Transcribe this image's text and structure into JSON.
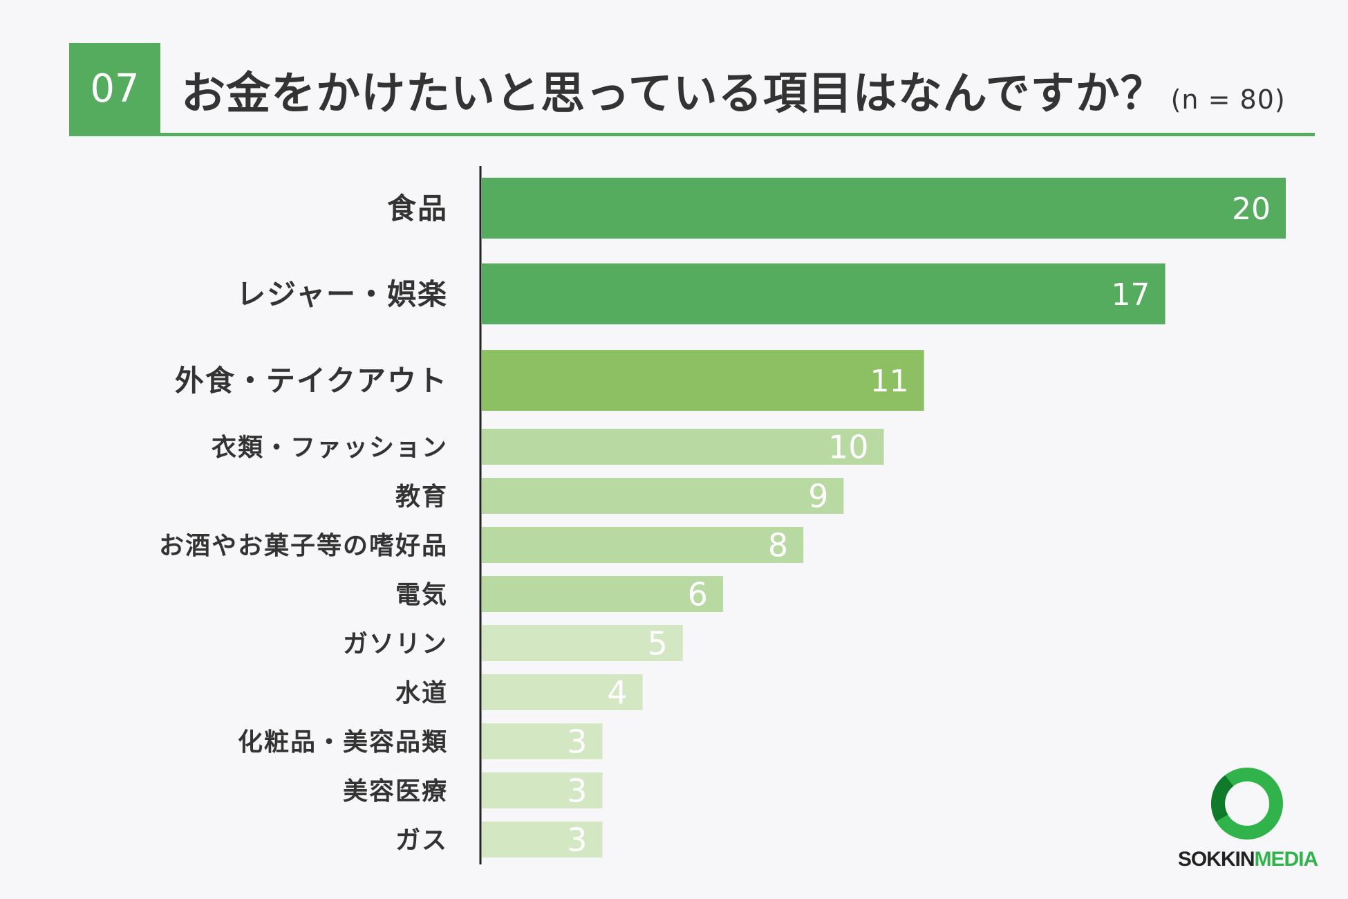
{
  "header": {
    "number": "07",
    "title": "お金をかけたいと思っている項目はなんですか？",
    "sample": "(n = 80)"
  },
  "logo": {
    "icon": "ring-icon",
    "text_part1": "SOKKIN",
    "text_part2": "MEDIA",
    "color": "#2fb34a"
  },
  "colors": {
    "accent": "#55ac5e",
    "tier1": "#55ac5e",
    "tier2": "#8cc063",
    "tier3": "#b8d9a1",
    "tier4": "#d3e7c2",
    "axis": "#222222",
    "label": "#333333",
    "value_label": "#ffffff"
  },
  "chart_data": {
    "type": "bar",
    "orientation": "horizontal",
    "title": "お金をかけたいと思っている項目はなんですか？",
    "xlim": [
      0,
      20
    ],
    "grid": false,
    "categories": [
      "食品",
      "レジャー・娯楽",
      "外食・テイクアウト",
      "衣類・ファッション",
      "教育",
      "お酒やお菓子等の嗜好品",
      "電気",
      "ガソリン",
      "水道",
      "化粧品・美容品類",
      "美容医療",
      "ガス"
    ],
    "values": [
      20,
      17,
      11,
      10,
      9,
      8,
      6,
      5,
      4,
      3,
      3,
      3
    ],
    "bar_tiers": [
      1,
      1,
      2,
      3,
      3,
      3,
      3,
      4,
      4,
      4,
      4,
      4
    ]
  }
}
